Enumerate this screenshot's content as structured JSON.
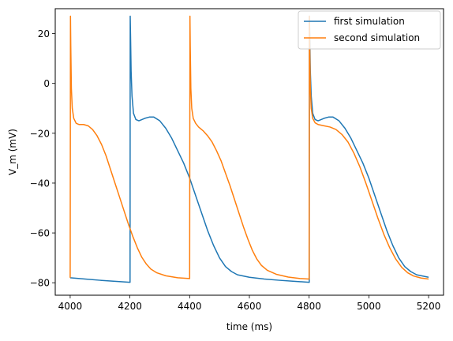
{
  "chart_data": {
    "type": "line",
    "xlabel": "time (ms)",
    "ylabel": "V_m (mV)",
    "xlim": [
      3950,
      5250
    ],
    "ylim": [
      -85,
      30
    ],
    "xticks": [
      4000,
      4200,
      4400,
      4600,
      4800,
      5000,
      5200
    ],
    "xtick_labels": [
      "4000",
      "4200",
      "4400",
      "4600",
      "4800",
      "5000",
      "5200"
    ],
    "yticks": [
      -80,
      -60,
      -40,
      -20,
      0,
      20
    ],
    "ytick_labels": [
      "−80",
      "−60",
      "−40",
      "−20",
      "0",
      "20"
    ],
    "legend_position": "top-right",
    "grid": false,
    "series": [
      {
        "name": "first simulation",
        "color": "#1f77b4",
        "points": [
          [
            4000,
            -78.0
          ],
          [
            4050,
            -78.5
          ],
          [
            4100,
            -79.0
          ],
          [
            4150,
            -79.4
          ],
          [
            4200,
            -79.8
          ],
          [
            4200.5,
            -79.8
          ],
          [
            4201,
            27.0
          ],
          [
            4202,
            20.0
          ],
          [
            4204,
            5.0
          ],
          [
            4207,
            -5.0
          ],
          [
            4212,
            -12.0
          ],
          [
            4220,
            -14.5
          ],
          [
            4230,
            -15.0
          ],
          [
            4250,
            -14.0
          ],
          [
            4265,
            -13.5
          ],
          [
            4280,
            -13.5
          ],
          [
            4300,
            -15.0
          ],
          [
            4320,
            -18.0
          ],
          [
            4340,
            -22.0
          ],
          [
            4360,
            -27.0
          ],
          [
            4380,
            -32.0
          ],
          [
            4400,
            -38.0
          ],
          [
            4420,
            -45.0
          ],
          [
            4440,
            -52.0
          ],
          [
            4460,
            -59.0
          ],
          [
            4480,
            -65.0
          ],
          [
            4500,
            -70.0
          ],
          [
            4520,
            -73.5
          ],
          [
            4540,
            -75.5
          ],
          [
            4560,
            -76.8
          ],
          [
            4600,
            -77.8
          ],
          [
            4650,
            -78.5
          ],
          [
            4700,
            -79.0
          ],
          [
            4750,
            -79.4
          ],
          [
            4800,
            -79.8
          ],
          [
            4800.5,
            -79.8
          ],
          [
            4801,
            27.0
          ],
          [
            4802,
            20.0
          ],
          [
            4804,
            5.0
          ],
          [
            4807,
            -5.0
          ],
          [
            4812,
            -12.0
          ],
          [
            4820,
            -14.5
          ],
          [
            4830,
            -15.0
          ],
          [
            4850,
            -14.0
          ],
          [
            4865,
            -13.5
          ],
          [
            4880,
            -13.5
          ],
          [
            4900,
            -15.0
          ],
          [
            4920,
            -18.0
          ],
          [
            4940,
            -22.0
          ],
          [
            4960,
            -27.0
          ],
          [
            4980,
            -32.0
          ],
          [
            5000,
            -38.0
          ],
          [
            5020,
            -45.0
          ],
          [
            5040,
            -52.0
          ],
          [
            5060,
            -59.0
          ],
          [
            5080,
            -65.0
          ],
          [
            5100,
            -70.0
          ],
          [
            5120,
            -73.5
          ],
          [
            5140,
            -75.5
          ],
          [
            5160,
            -76.8
          ],
          [
            5200,
            -77.8
          ]
        ]
      },
      {
        "name": "second simulation",
        "color": "#ff7f0e",
        "points": [
          [
            4000,
            -78.0
          ],
          [
            4001,
            27.0
          ],
          [
            4002,
            15.0
          ],
          [
            4004,
            -2.0
          ],
          [
            4007,
            -10.0
          ],
          [
            4012,
            -14.0
          ],
          [
            4020,
            -16.0
          ],
          [
            4030,
            -16.5
          ],
          [
            4045,
            -16.5
          ],
          [
            4060,
            -17.0
          ],
          [
            4075,
            -18.5
          ],
          [
            4090,
            -21.0
          ],
          [
            4105,
            -24.5
          ],
          [
            4120,
            -29.0
          ],
          [
            4135,
            -34.5
          ],
          [
            4150,
            -40.0
          ],
          [
            4165,
            -45.5
          ],
          [
            4180,
            -51.0
          ],
          [
            4195,
            -56.5
          ],
          [
            4210,
            -61.5
          ],
          [
            4225,
            -66.0
          ],
          [
            4240,
            -69.8
          ],
          [
            4255,
            -72.5
          ],
          [
            4270,
            -74.5
          ],
          [
            4290,
            -76.0
          ],
          [
            4320,
            -77.2
          ],
          [
            4360,
            -78.0
          ],
          [
            4399,
            -78.3
          ],
          [
            4400,
            -78.3
          ],
          [
            4401,
            27.0
          ],
          [
            4402,
            15.0
          ],
          [
            4404,
            -2.0
          ],
          [
            4407,
            -10.0
          ],
          [
            4412,
            -14.0
          ],
          [
            4420,
            -16.0
          ],
          [
            4430,
            -17.5
          ],
          [
            4445,
            -19.0
          ],
          [
            4460,
            -21.0
          ],
          [
            4475,
            -23.5
          ],
          [
            4490,
            -27.0
          ],
          [
            4505,
            -31.0
          ],
          [
            4520,
            -36.0
          ],
          [
            4535,
            -41.0
          ],
          [
            4550,
            -46.5
          ],
          [
            4565,
            -52.0
          ],
          [
            4580,
            -57.5
          ],
          [
            4595,
            -62.5
          ],
          [
            4610,
            -67.0
          ],
          [
            4625,
            -70.5
          ],
          [
            4640,
            -73.0
          ],
          [
            4660,
            -75.0
          ],
          [
            4690,
            -76.6
          ],
          [
            4730,
            -77.7
          ],
          [
            4770,
            -78.3
          ],
          [
            4799,
            -78.5
          ],
          [
            4800,
            -78.5
          ],
          [
            4801,
            27.0
          ],
          [
            4802,
            15.0
          ],
          [
            4804,
            -2.0
          ],
          [
            4807,
            -10.0
          ],
          [
            4812,
            -14.0
          ],
          [
            4820,
            -15.8
          ],
          [
            4830,
            -16.5
          ],
          [
            4850,
            -17.0
          ],
          [
            4870,
            -17.5
          ],
          [
            4890,
            -18.5
          ],
          [
            4910,
            -20.5
          ],
          [
            4930,
            -23.5
          ],
          [
            4950,
            -28.0
          ],
          [
            4970,
            -33.5
          ],
          [
            4990,
            -40.0
          ],
          [
            5010,
            -47.0
          ],
          [
            5030,
            -54.0
          ],
          [
            5050,
            -60.5
          ],
          [
            5070,
            -66.0
          ],
          [
            5090,
            -70.5
          ],
          [
            5110,
            -73.8
          ],
          [
            5130,
            -76.0
          ],
          [
            5150,
            -77.3
          ],
          [
            5175,
            -78.1
          ],
          [
            5200,
            -78.5
          ]
        ]
      }
    ]
  }
}
